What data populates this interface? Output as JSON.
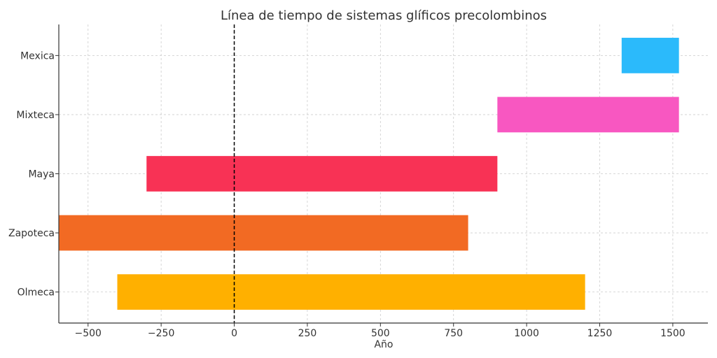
{
  "chart_data": {
    "type": "bar",
    "orientation": "horizontal",
    "title": "Línea de tiempo de sistemas glíficos precolombinos",
    "xlabel": "Año",
    "ylabel": "",
    "xlim": [
      -600,
      1620
    ],
    "xticks": [
      -500,
      -250,
      0,
      250,
      500,
      750,
      1000,
      1250,
      1500
    ],
    "xtick_labels": [
      "−500",
      "−250",
      "0",
      "250",
      "500",
      "750",
      "1000",
      "1250",
      "1500"
    ],
    "grid": true,
    "reference_line": {
      "x": 0,
      "style": "dashed",
      "color": "#000000"
    },
    "categories": [
      "Olmeca",
      "Zapoteca",
      "Maya",
      "Mixteca",
      "Mexica"
    ],
    "bars": [
      {
        "label": "Olmeca",
        "start": -400,
        "end": 1200,
        "color": "#FFB000"
      },
      {
        "label": "Zapoteca",
        "start": -600,
        "end": 800,
        "color": "#F26A23"
      },
      {
        "label": "Maya",
        "start": -300,
        "end": 900,
        "color": "#F83255"
      },
      {
        "label": "Mixteca",
        "start": 900,
        "end": 1521,
        "color": "#F857C1"
      },
      {
        "label": "Mexica",
        "start": 1325,
        "end": 1521,
        "color": "#2BBAFB"
      }
    ]
  }
}
